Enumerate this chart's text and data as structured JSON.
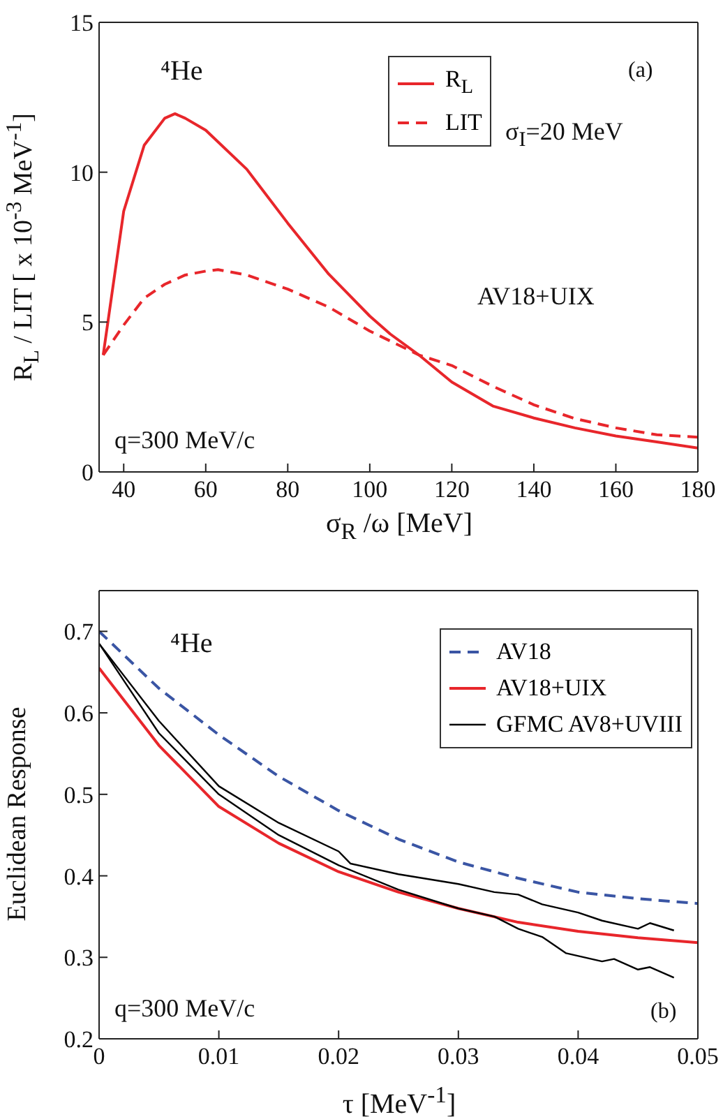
{
  "chart_data": [
    {
      "type": "line",
      "xlabel": "σ$_{R}$ /ω [MeV]",
      "ylabel": "R$_{L}$ / LIT [ x 10$^{-3}$ MeV$^{-1}$]",
      "xlim": [
        34,
        180
      ],
      "xticks": [
        40,
        60,
        80,
        100,
        120,
        140,
        160,
        180
      ],
      "ylim": [
        0,
        15
      ],
      "yticks": [
        0,
        5,
        10,
        15
      ],
      "legend": "top",
      "marker": "none",
      "annotations": [
        "⁴He",
        "(a)",
        "σ$_{I}$=20 MeV",
        "AV18+UIX",
        "q=300 MeV/c"
      ],
      "series": [
        {
          "name": "R$_{L}$",
          "color": "#e8262b",
          "line_style": "solid",
          "x": [
            35,
            40,
            45,
            50,
            52.5,
            55,
            60,
            70,
            80,
            90,
            100,
            105,
            112,
            120,
            130,
            140,
            150,
            160,
            170,
            180
          ],
          "values": [
            3.9,
            8.7,
            10.9,
            11.8,
            11.95,
            11.8,
            11.4,
            10.1,
            8.3,
            6.6,
            5.2,
            4.6,
            3.9,
            3.0,
            2.2,
            1.8,
            1.47,
            1.2,
            1.0,
            0.8
          ]
        },
        {
          "name": "LIT",
          "color": "#e8262b",
          "line_style": "dashed",
          "x": [
            35,
            40,
            45,
            50,
            55,
            60,
            63,
            70,
            80,
            90,
            100,
            112,
            120,
            130,
            140,
            150,
            160,
            170,
            180
          ],
          "values": [
            3.9,
            4.9,
            5.8,
            6.26,
            6.57,
            6.7,
            6.75,
            6.57,
            6.1,
            5.5,
            4.7,
            3.9,
            3.55,
            2.86,
            2.24,
            1.78,
            1.47,
            1.24,
            1.16
          ]
        }
      ]
    },
    {
      "type": "line",
      "xlabel": "τ [MeV$^{-1}$]",
      "ylabel": "Euclidean  Response",
      "xlim": [
        0,
        0.05
      ],
      "xticks": [
        0,
        0.01,
        0.02,
        0.03,
        0.04,
        0.05
      ],
      "ylim": [
        0.2,
        0.75
      ],
      "yticks": [
        0.2,
        0.3,
        0.4,
        0.5,
        0.6,
        0.7
      ],
      "legend": "top right",
      "marker": "none",
      "annotations": [
        "⁴He",
        "q=300 MeV/c",
        "(b)"
      ],
      "series": [
        {
          "name": "AV18",
          "color": "#3a55a4",
          "line_style": "dashed",
          "x": [
            0,
            0.005,
            0.01,
            0.015,
            0.02,
            0.025,
            0.03,
            0.035,
            0.04,
            0.045,
            0.05
          ],
          "values": [
            0.7,
            0.63,
            0.573,
            0.522,
            0.48,
            0.445,
            0.417,
            0.397,
            0.38,
            0.372,
            0.366
          ]
        },
        {
          "name": "AV18+UIX",
          "color": "#e8262b",
          "line_style": "solid",
          "x": [
            0,
            0.005,
            0.01,
            0.015,
            0.02,
            0.025,
            0.03,
            0.035,
            0.04,
            0.045,
            0.05
          ],
          "values": [
            0.655,
            0.56,
            0.485,
            0.44,
            0.405,
            0.38,
            0.36,
            0.343,
            0.332,
            0.324,
            0.318
          ]
        },
        {
          "name": "GFMC AV8+UVIII",
          "color": "#000000",
          "line_style": "solid",
          "x": [
            0,
            0.005,
            0.01,
            0.015,
            0.02,
            0.021,
            0.025,
            0.03,
            0.033,
            0.035,
            0.037,
            0.04,
            0.042,
            0.045,
            0.046,
            0.048
          ],
          "values": [
            0.685,
            0.59,
            0.51,
            0.465,
            0.43,
            0.415,
            0.402,
            0.39,
            0.38,
            0.377,
            0.365,
            0.355,
            0.345,
            0.335,
            0.342,
            0.333
          ]
        },
        {
          "color": "#000000",
          "line_style": "solid",
          "x": [
            0,
            0.005,
            0.01,
            0.015,
            0.02,
            0.025,
            0.03,
            0.033,
            0.035,
            0.037,
            0.039,
            0.042,
            0.043,
            0.045,
            0.046,
            0.048
          ],
          "values": [
            0.685,
            0.575,
            0.5,
            0.45,
            0.413,
            0.383,
            0.36,
            0.35,
            0.335,
            0.325,
            0.305,
            0.295,
            0.298,
            0.285,
            0.288,
            0.275
          ]
        }
      ]
    }
  ]
}
